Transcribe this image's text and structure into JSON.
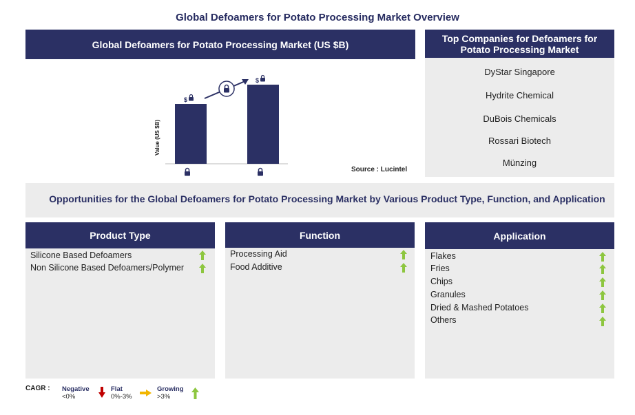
{
  "page_title": "Global Defoamers for Potato Processing Market Overview",
  "market_chart": {
    "title": "Global Defoamers for Potato Processing Market (US $B)",
    "ylabel": "Value (US $B)",
    "bar_label_prefix": "$",
    "source": "Source : Lucintel",
    "colors": {
      "bar": "#2b3064"
    }
  },
  "companies": {
    "title": "Top Companies for Defoamers for Potato Processing Market",
    "items": [
      "DyStar Singapore",
      "Hydrite Chemical",
      "DuBois Chemicals",
      "Rossari Biotech",
      "Münzing"
    ]
  },
  "opportunities_title": "Opportunities for the Global Defoamers for Potato Processing Market by Various Product Type, Function, and Application",
  "segments": [
    {
      "title": "Product Type",
      "items": [
        "Silicone Based Defoamers",
        "Non Silicone Based Defoamers/Polymer"
      ]
    },
    {
      "title": "Function",
      "items": [
        "Processing Aid",
        "Food Additive"
      ]
    },
    {
      "title": "Application",
      "items": [
        "Flakes",
        "Fries",
        "Chips",
        "Granules",
        "Dried & Mashed Potatoes",
        "Others"
      ]
    }
  ],
  "legend": {
    "cagr_label": "CAGR :",
    "negative": {
      "label": "Negative",
      "range": "<0%"
    },
    "flat": {
      "label": "Flat",
      "range": "0%-3%"
    },
    "growing": {
      "label": "Growing",
      "range": ">3%"
    }
  },
  "colors": {
    "navy": "#2b3064",
    "panel_grey": "#ececec",
    "growing_arrow": "#8dc63f",
    "negative_arrow": "#c00000",
    "flat_arrow": "#f2b600"
  }
}
